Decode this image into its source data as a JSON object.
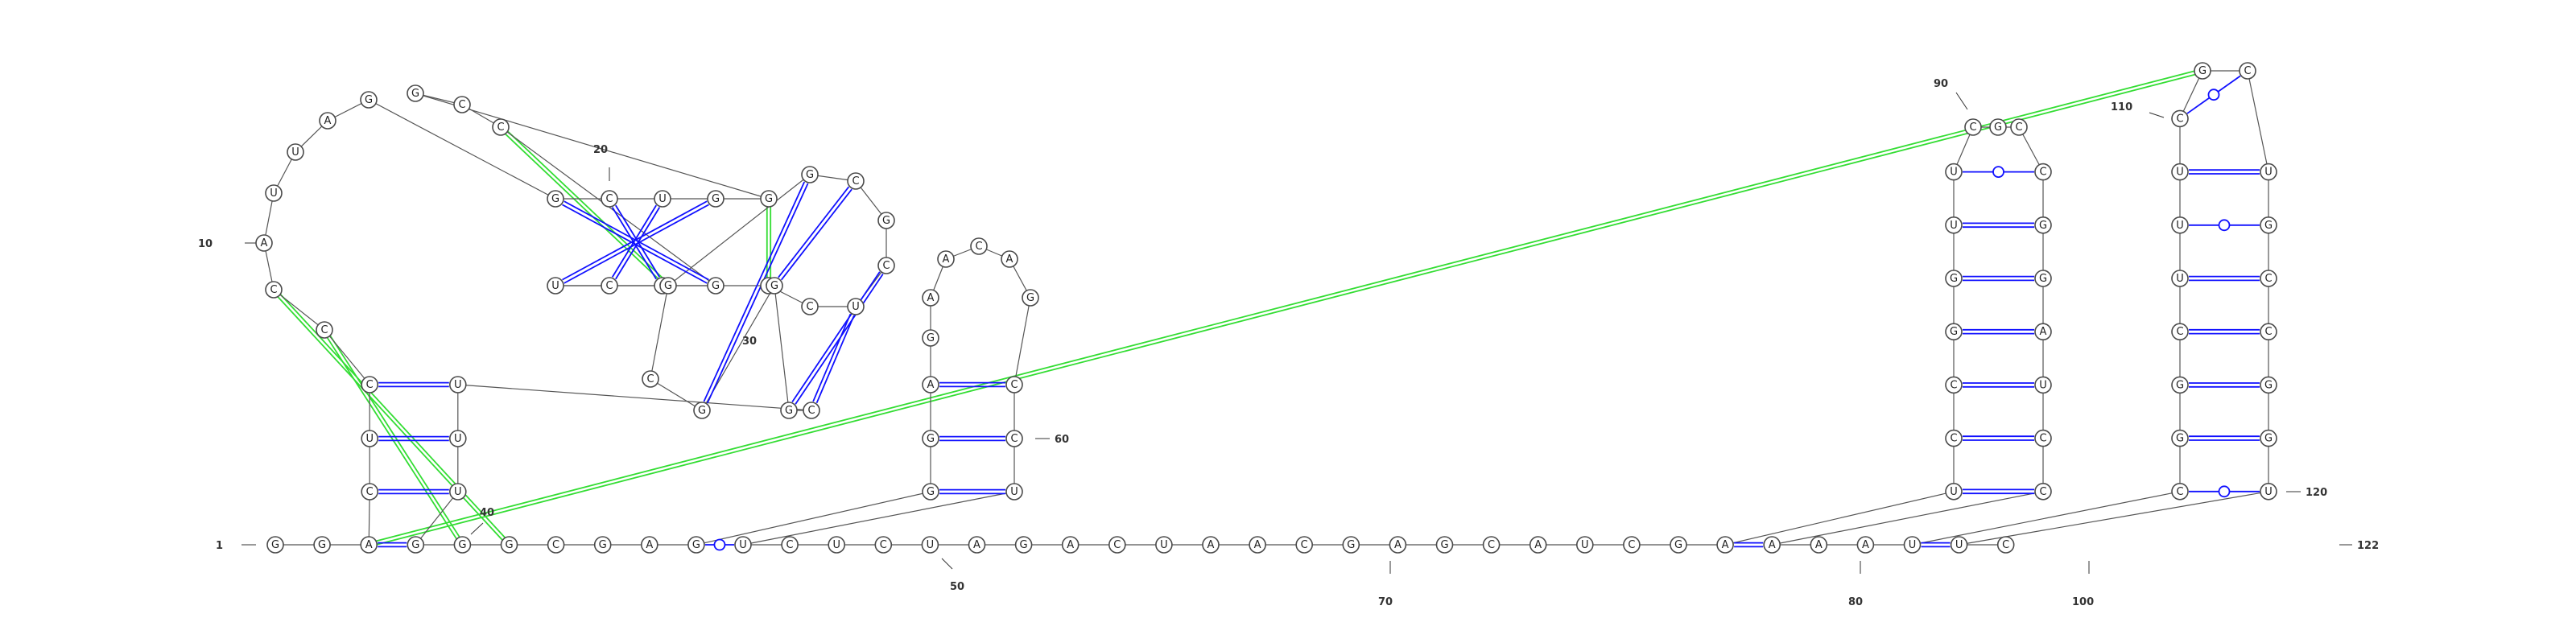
{
  "colors": {
    "canonical_pair": "#1010ff",
    "gu_pair": "#1010ff",
    "tertiary_pair": "#33dd33",
    "backbone": "#555555",
    "nucleotide_outline": "#4a4a4a"
  },
  "sequence": [
    {
      "n": 1,
      "b": "G"
    },
    {
      "n": 2,
      "b": "G"
    },
    {
      "n": 3,
      "b": "A"
    },
    {
      "n": 4,
      "b": "C"
    },
    {
      "n": 5,
      "b": "U"
    },
    {
      "n": 6,
      "b": "C"
    },
    {
      "n": 7,
      "b": "C"
    },
    {
      "n": 8,
      "b": "C"
    },
    {
      "n": 9,
      "b": "A"
    },
    {
      "n": 10,
      "b": "U"
    },
    {
      "n": 11,
      "b": "U"
    },
    {
      "n": 12,
      "b": "A"
    },
    {
      "n": 13,
      "b": "G"
    },
    {
      "n": 14,
      "b": "G"
    },
    {
      "n": 15,
      "b": "C"
    },
    {
      "n": 16,
      "b": "U"
    },
    {
      "n": 17,
      "b": "G"
    },
    {
      "n": 18,
      "b": "G"
    },
    {
      "n": 19,
      "b": "G"
    },
    {
      "n": 20,
      "b": "C"
    },
    {
      "n": 21,
      "b": "C"
    },
    {
      "n": 22,
      "b": "G"
    },
    {
      "n": 23,
      "b": "C"
    },
    {
      "n": 24,
      "b": "C"
    },
    {
      "n": 25,
      "b": "U"
    },
    {
      "n": 26,
      "b": "C"
    },
    {
      "n": 27,
      "b": "C"
    },
    {
      "n": 28,
      "b": "U"
    },
    {
      "n": 29,
      "b": "C"
    },
    {
      "n": 30,
      "b": "G"
    },
    {
      "n": 31,
      "b": "C"
    },
    {
      "n": 32,
      "b": "G"
    },
    {
      "n": 33,
      "b": "G"
    },
    {
      "n": 34,
      "b": "C"
    },
    {
      "n": 35,
      "b": "G"
    },
    {
      "n": 36,
      "b": "G"
    },
    {
      "n": 37,
      "b": "G"
    },
    {
      "n": 38,
      "b": "C"
    },
    {
      "n": 39,
      "b": "U"
    },
    {
      "n": 40,
      "b": "U"
    },
    {
      "n": 41,
      "b": "U"
    },
    {
      "n": 42,
      "b": "G"
    },
    {
      "n": 43,
      "b": "G"
    },
    {
      "n": 44,
      "b": "G"
    },
    {
      "n": 45,
      "b": "C"
    },
    {
      "n": 46,
      "b": "G"
    },
    {
      "n": 47,
      "b": "A"
    },
    {
      "n": 48,
      "b": "G"
    },
    {
      "n": 49,
      "b": "G"
    },
    {
      "n": 50,
      "b": "G"
    },
    {
      "n": 51,
      "b": "A"
    },
    {
      "n": 52,
      "b": "G"
    },
    {
      "n": 53,
      "b": "A"
    },
    {
      "n": 54,
      "b": "A"
    },
    {
      "n": 55,
      "b": "C"
    },
    {
      "n": 56,
      "b": "A"
    },
    {
      "n": 57,
      "b": "G"
    },
    {
      "n": 58,
      "b": "C"
    },
    {
      "n": 59,
      "b": "C"
    },
    {
      "n": 60,
      "b": "U"
    },
    {
      "n": 61,
      "b": "U"
    },
    {
      "n": 62,
      "b": "C"
    },
    {
      "n": 63,
      "b": "U"
    },
    {
      "n": 64,
      "b": "C"
    },
    {
      "n": 65,
      "b": "U"
    },
    {
      "n": 66,
      "b": "A"
    },
    {
      "n": 67,
      "b": "G"
    },
    {
      "n": 68,
      "b": "A"
    },
    {
      "n": 69,
      "b": "C"
    },
    {
      "n": 70,
      "b": "U"
    },
    {
      "n": 71,
      "b": "A"
    },
    {
      "n": 72,
      "b": "A"
    },
    {
      "n": 73,
      "b": "C"
    },
    {
      "n": 74,
      "b": "G"
    },
    {
      "n": 75,
      "b": "A"
    },
    {
      "n": 76,
      "b": "G"
    },
    {
      "n": 77,
      "b": "C"
    },
    {
      "n": 78,
      "b": "A"
    },
    {
      "n": 79,
      "b": "U"
    },
    {
      "n": 80,
      "b": "C"
    },
    {
      "n": 81,
      "b": "G"
    },
    {
      "n": 82,
      "b": "A"
    },
    {
      "n": 83,
      "b": "U"
    },
    {
      "n": 84,
      "b": "C"
    },
    {
      "n": 85,
      "b": "C"
    },
    {
      "n": 86,
      "b": "G"
    },
    {
      "n": 87,
      "b": "G"
    },
    {
      "n": 88,
      "b": "U"
    },
    {
      "n": 89,
      "b": "U"
    },
    {
      "n": 90,
      "b": "C"
    },
    {
      "n": 91,
      "b": "G"
    },
    {
      "n": 92,
      "b": "C"
    },
    {
      "n": 93,
      "b": "C"
    },
    {
      "n": 94,
      "b": "G"
    },
    {
      "n": 95,
      "b": "G"
    },
    {
      "n": 96,
      "b": "A"
    },
    {
      "n": 97,
      "b": "U"
    },
    {
      "n": 98,
      "b": "C"
    },
    {
      "n": 99,
      "b": "C"
    },
    {
      "n": 100,
      "b": "A"
    },
    {
      "n": 101,
      "b": "A"
    },
    {
      "n": 102,
      "b": "A"
    },
    {
      "n": 103,
      "b": "U"
    },
    {
      "n": 104,
      "b": "C"
    },
    {
      "n": 105,
      "b": "G"
    },
    {
      "n": 106,
      "b": "G"
    },
    {
      "n": 107,
      "b": "C"
    },
    {
      "n": 108,
      "b": "U"
    },
    {
      "n": 109,
      "b": "U"
    },
    {
      "n": 110,
      "b": "U"
    },
    {
      "n": 111,
      "b": "C"
    },
    {
      "n": 112,
      "b": "G"
    },
    {
      "n": 113,
      "b": "C"
    },
    {
      "n": 114,
      "b": "U"
    },
    {
      "n": 115,
      "b": "G"
    },
    {
      "n": 116,
      "b": "C"
    },
    {
      "n": 117,
      "b": "C"
    },
    {
      "n": 118,
      "b": "G"
    },
    {
      "n": 119,
      "b": "G"
    },
    {
      "n": 120,
      "b": "U"
    },
    {
      "n": 121,
      "b": "U"
    },
    {
      "n": 122,
      "b": "C"
    }
  ],
  "pairs": [
    {
      "i": 3,
      "j": 42,
      "type": "canonical"
    },
    {
      "i": 4,
      "j": 41,
      "type": "canonical"
    },
    {
      "i": 5,
      "j": 40,
      "type": "canonical"
    },
    {
      "i": 6,
      "j": 39,
      "type": "canonical"
    },
    {
      "i": 14,
      "j": 22,
      "type": "canonical"
    },
    {
      "i": 15,
      "j": 23,
      "type": "canonical"
    },
    {
      "i": 16,
      "j": 24,
      "type": "canonical"
    },
    {
      "i": 17,
      "j": 25,
      "type": "canonical"
    },
    {
      "i": 28,
      "j": 38,
      "type": "canonical"
    },
    {
      "i": 29,
      "j": 37,
      "type": "canonical"
    },
    {
      "i": 31,
      "j": 36,
      "type": "canonical"
    },
    {
      "i": 32,
      "j": 35,
      "type": "canonical"
    },
    {
      "i": 48,
      "j": 61,
      "type": "gu"
    },
    {
      "i": 49,
      "j": 60,
      "type": "canonical"
    },
    {
      "i": 50,
      "j": 59,
      "type": "canonical"
    },
    {
      "i": 51,
      "j": 58,
      "type": "canonical"
    },
    {
      "i": 82,
      "j": 100,
      "type": "canonical"
    },
    {
      "i": 83,
      "j": 99,
      "type": "canonical"
    },
    {
      "i": 84,
      "j": 98,
      "type": "canonical"
    },
    {
      "i": 85,
      "j": 97,
      "type": "canonical"
    },
    {
      "i": 86,
      "j": 96,
      "type": "canonical"
    },
    {
      "i": 87,
      "j": 95,
      "type": "canonical"
    },
    {
      "i": 88,
      "j": 94,
      "type": "canonical"
    },
    {
      "i": 89,
      "j": 93,
      "type": "gu"
    },
    {
      "i": 103,
      "j": 121,
      "type": "canonical"
    },
    {
      "i": 104,
      "j": 120,
      "type": "gu"
    },
    {
      "i": 105,
      "j": 119,
      "type": "canonical"
    },
    {
      "i": 106,
      "j": 118,
      "type": "canonical"
    },
    {
      "i": 107,
      "j": 117,
      "type": "canonical"
    },
    {
      "i": 108,
      "j": 116,
      "type": "canonical"
    },
    {
      "i": 109,
      "j": 115,
      "type": "gu"
    },
    {
      "i": 110,
      "j": 114,
      "type": "canonical"
    },
    {
      "i": 111,
      "j": 113,
      "type": "gu"
    },
    {
      "i": 18,
      "j": 26,
      "type": "tertiary"
    },
    {
      "i": 7,
      "j": 43,
      "type": "tertiary"
    },
    {
      "i": 8,
      "j": 44,
      "type": "tertiary"
    },
    {
      "i": 21,
      "j": 33,
      "type": "tertiary"
    },
    {
      "i": 3,
      "j": 112,
      "type": "tertiary"
    }
  ],
  "position_labels": [
    {
      "n": 1,
      "text": "1"
    },
    {
      "n": 10,
      "text": "10"
    },
    {
      "n": 20,
      "text": "20"
    },
    {
      "n": 30,
      "text": "30"
    },
    {
      "n": 40,
      "text": "40"
    },
    {
      "n": 50,
      "text": "50"
    },
    {
      "n": 60,
      "text": "60"
    },
    {
      "n": 70,
      "text": "70"
    },
    {
      "n": 80,
      "text": "80"
    },
    {
      "n": 90,
      "text": "90"
    },
    {
      "n": 100,
      "text": "100"
    },
    {
      "n": 110,
      "text": "110"
    },
    {
      "n": 120,
      "text": "120"
    },
    {
      "n": 122,
      "text": "122"
    }
  ]
}
